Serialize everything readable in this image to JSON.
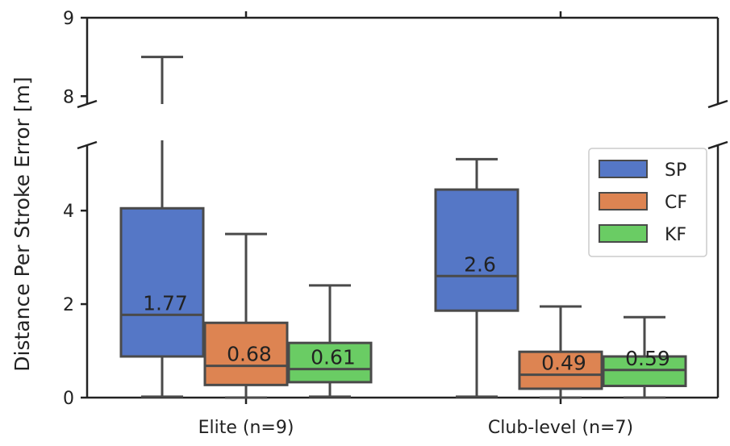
{
  "chart_data": {
    "type": "box",
    "ylabel": "Distance Per Stroke Error [m]",
    "categories": [
      "Elite (n=9)",
      "Club-level (n=7)"
    ],
    "axis_break": {
      "lower_ylim": [
        0,
        5.4
      ],
      "upper_ylim": [
        7.9,
        9
      ]
    },
    "y_ticks_lower": [
      0,
      2,
      4
    ],
    "y_ticks_upper": [
      8,
      9
    ],
    "legend": {
      "position": "right",
      "entries": [
        "SP",
        "CF",
        "KF"
      ]
    },
    "colors": {
      "SP": "#5577c6",
      "CF": "#dd8452",
      "KF": "#6acc64",
      "edge": "#4a4a4a"
    },
    "series": [
      {
        "name": "SP",
        "boxes": [
          {
            "whisker_low": 0.02,
            "q1": 0.88,
            "median": 1.77,
            "q3": 4.05,
            "whisker_high": 8.5,
            "label": "1.77"
          },
          {
            "whisker_low": 0.02,
            "q1": 1.86,
            "median": 2.6,
            "q3": 4.45,
            "whisker_high": 5.1,
            "label": "2.6"
          }
        ]
      },
      {
        "name": "CF",
        "boxes": [
          {
            "whisker_low": 0.0,
            "q1": 0.27,
            "median": 0.68,
            "q3": 1.6,
            "whisker_high": 3.5,
            "label": "0.68"
          },
          {
            "whisker_low": 0.0,
            "q1": 0.19,
            "median": 0.49,
            "q3": 0.98,
            "whisker_high": 1.95,
            "label": "0.49"
          }
        ]
      },
      {
        "name": "KF",
        "boxes": [
          {
            "whisker_low": 0.02,
            "q1": 0.33,
            "median": 0.61,
            "q3": 1.17,
            "whisker_high": 2.4,
            "label": "0.61"
          },
          {
            "whisker_low": 0.0,
            "q1": 0.25,
            "median": 0.59,
            "q3": 0.88,
            "whisker_high": 1.72,
            "label": "0.59"
          }
        ]
      }
    ]
  }
}
